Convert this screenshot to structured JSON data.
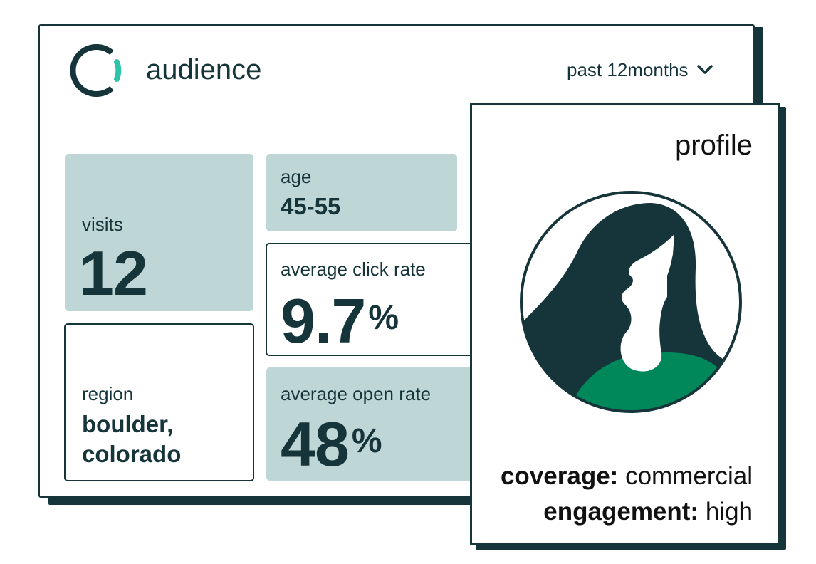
{
  "audience_card": {
    "title": "audience",
    "date_filter": {
      "selected": "past 12months"
    },
    "stats": {
      "visits": {
        "label": "visits",
        "value": "12"
      },
      "age": {
        "label": "age",
        "value": "45-55"
      },
      "click_rate": {
        "label": "average click rate",
        "value": "9.7",
        "unit": "%"
      },
      "region": {
        "label": "region",
        "value_line1": "boulder,",
        "value_line2": "colorado"
      },
      "open_rate": {
        "label": "average open rate",
        "value": "48",
        "unit": "%"
      }
    }
  },
  "profile_card": {
    "title": "profile",
    "coverage": {
      "label": "coverage:",
      "value": "commercial"
    },
    "engagement": {
      "label": "engagement:",
      "value": "high"
    }
  },
  "colors": {
    "ink": "#16353a",
    "tile_fill": "#bfd6d7",
    "accent_teal": "#2ec4a9",
    "shirt_green": "#00875a"
  },
  "icons": {
    "logo": "ring-logo-icon",
    "dropdown": "chevron-down-icon",
    "avatar": "woman-profile-avatar"
  }
}
